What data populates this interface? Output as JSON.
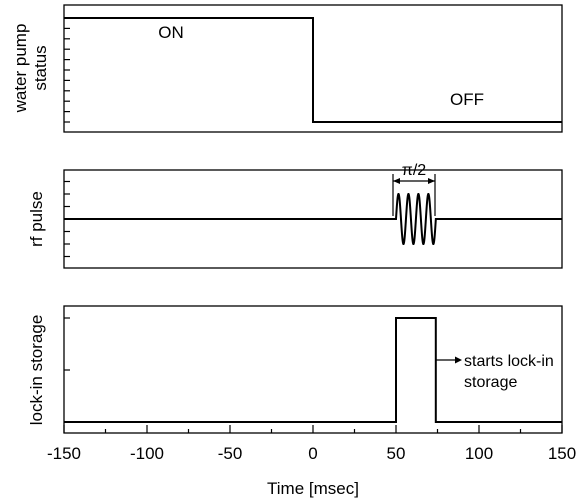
{
  "chart_data": [
    {
      "panel": "water-pump",
      "type": "line",
      "ylabel_lines": [
        "water pump",
        "status"
      ],
      "x": [
        -150,
        0,
        0,
        150
      ],
      "y": [
        1,
        1,
        0,
        0
      ],
      "annotations": {
        "on": "ON",
        "off": "OFF"
      }
    },
    {
      "panel": "rf-pulse",
      "type": "line",
      "ylabel": "rf pulse",
      "baseline": {
        "x_start": -150,
        "x_end": 150,
        "y": 0
      },
      "pulse": {
        "x_start": 50,
        "x_end": 74,
        "cycles": 4,
        "amplitude": 1
      },
      "annotation": "π/2"
    },
    {
      "panel": "lock-in",
      "type": "line",
      "ylabel": "lock-in storage",
      "x": [
        -150,
        50,
        50,
        74,
        74,
        150
      ],
      "y": [
        0,
        0,
        1,
        1,
        0,
        0
      ],
      "annotation_lines": [
        "starts lock-in",
        "storage"
      ]
    }
  ],
  "xaxis": {
    "label": "Time [msec]",
    "xlim": [
      -150,
      150
    ],
    "ticks": [
      -150,
      -100,
      -50,
      0,
      50,
      100,
      150
    ],
    "tick_labels": [
      "-150",
      "-100",
      "-50",
      "0",
      "50",
      "100",
      "150"
    ]
  }
}
